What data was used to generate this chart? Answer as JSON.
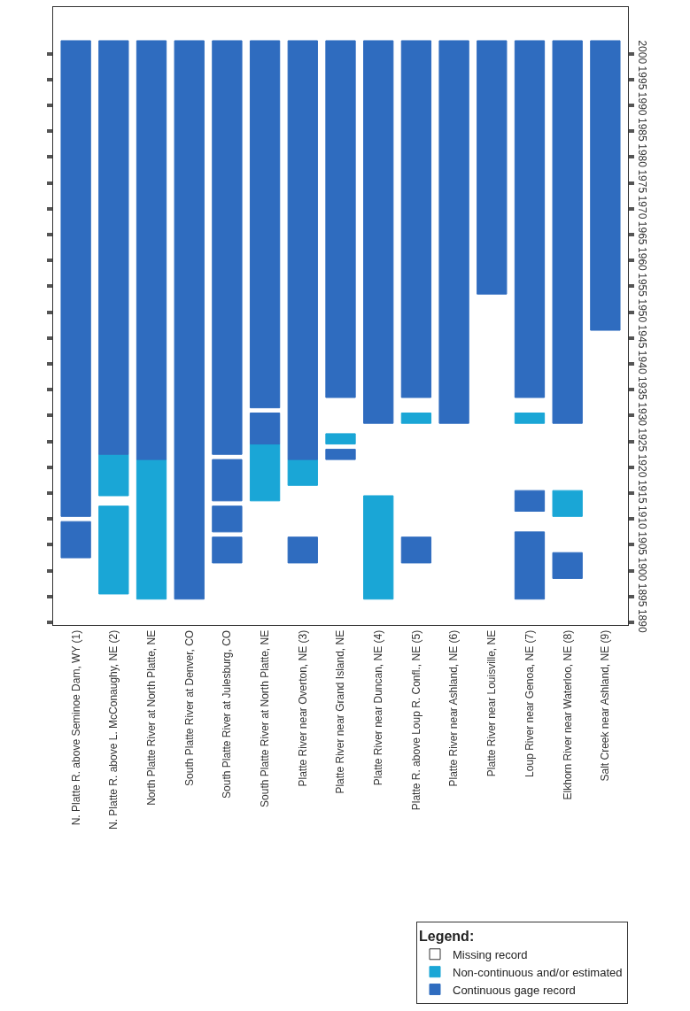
{
  "chart_data": {
    "type": "bar",
    "categories": [
      "N. Platte R. above Seminoe Dam, WY (1)",
      "N. Platte R. above L. McConaughy, NE (2)",
      "North Platte River at North Platte, NE",
      "South Platte River at Denver, CO",
      "South Platte River at Julesburg, CO",
      "South Platte River at North Platte, NE",
      "Platte River near Overton, NE (3)",
      "Platte River near Grand Island, NE",
      "Platte River near Duncan, NE (4)",
      "Platte R. above Loup R. Confl., NE (5)",
      "Platte River near Ashland, NE (6)",
      "Platte River near Louisville, NE",
      "Loup River near Genoa, NE (7)",
      "Elkhorn River near Waterloo, NE (8)",
      "Salt Creek near Ashland, NE (9)"
    ],
    "series": [
      {
        "name": "Missing record",
        "color": "#ffffff",
        "values": [
          null,
          null,
          null,
          null,
          null,
          null,
          null,
          null,
          null,
          null,
          null,
          null,
          null,
          null,
          null
        ],
        "base": [
          null,
          null,
          null,
          null,
          null,
          null,
          null,
          null,
          null,
          null,
          null,
          null,
          null,
          null,
          null
        ]
      },
      {
        "name": "Non-continuous and/or estimated",
        "color": "#1aa6d6",
        "values": [
          null,
          8,
          27,
          null,
          null,
          11,
          5,
          2,
          20,
          2,
          null,
          null,
          2,
          5,
          null
        ],
        "base": [
          null,
          1914.5,
          1894.5,
          null,
          null,
          1913.5,
          1916.5,
          1924.5,
          1894.5,
          1928.5,
          null,
          null,
          1928.5,
          1910.5,
          null
        ]
      },
      {
        "color": "#1aa6d6",
        "values": [
          null,
          17,
          null,
          null,
          null,
          null,
          null,
          null,
          null,
          null,
          null,
          null,
          null,
          null,
          null
        ],
        "base": [
          null,
          1895.5,
          null,
          null,
          null,
          null,
          null,
          null,
          null,
          null,
          null,
          null,
          null,
          null,
          null
        ]
      },
      {
        "name": "Continuous gage record",
        "color": "#2f6cbf",
        "values": [
          92,
          80,
          81,
          108,
          80,
          71,
          81,
          69,
          74,
          69,
          74,
          49,
          69,
          74,
          56
        ],
        "base": [
          1910.5,
          1922.5,
          1921.5,
          1894.5,
          1922.5,
          1931.5,
          1921.5,
          1933.5,
          1928.5,
          1933.5,
          1928.5,
          1953.5,
          1933.5,
          1928.5,
          1946.5
        ]
      },
      {
        "color": "#2f6cbf",
        "values": [
          7,
          null,
          null,
          null,
          8,
          6,
          5,
          2,
          null,
          5,
          null,
          null,
          4,
          5,
          null
        ],
        "base": [
          1902.5,
          null,
          null,
          null,
          1913.5,
          1924.5,
          1901.5,
          1921.5,
          null,
          1901.5,
          null,
          null,
          1911.5,
          1898.5,
          null
        ]
      },
      {
        "color": "#2f6cbf",
        "values": [
          null,
          null,
          null,
          null,
          5,
          null,
          null,
          null,
          null,
          null,
          null,
          null,
          13,
          null,
          null
        ],
        "base": [
          null,
          null,
          null,
          null,
          1907.5,
          null,
          null,
          null,
          null,
          null,
          null,
          null,
          1894.5,
          null,
          null
        ]
      },
      {
        "color": "#2f6cbf",
        "values": [
          null,
          null,
          null,
          null,
          5,
          null,
          null,
          null,
          null,
          null,
          null,
          null,
          null,
          null,
          null
        ],
        "base": [
          null,
          null,
          null,
          null,
          1901.5,
          null,
          null,
          null,
          null,
          null,
          null,
          null,
          null,
          null,
          null
        ]
      }
    ],
    "ylim": [
      1889.5,
      2009
    ],
    "yticks": [
      1890,
      1895,
      1900,
      1905,
      1910,
      1915,
      1920,
      1925,
      1930,
      1935,
      1940,
      1945,
      1950,
      1955,
      1960,
      1965,
      1970,
      1975,
      1980,
      1985,
      1990,
      1995,
      2000
    ],
    "legend_title": "Legend:",
    "legend": "bottom right"
  }
}
